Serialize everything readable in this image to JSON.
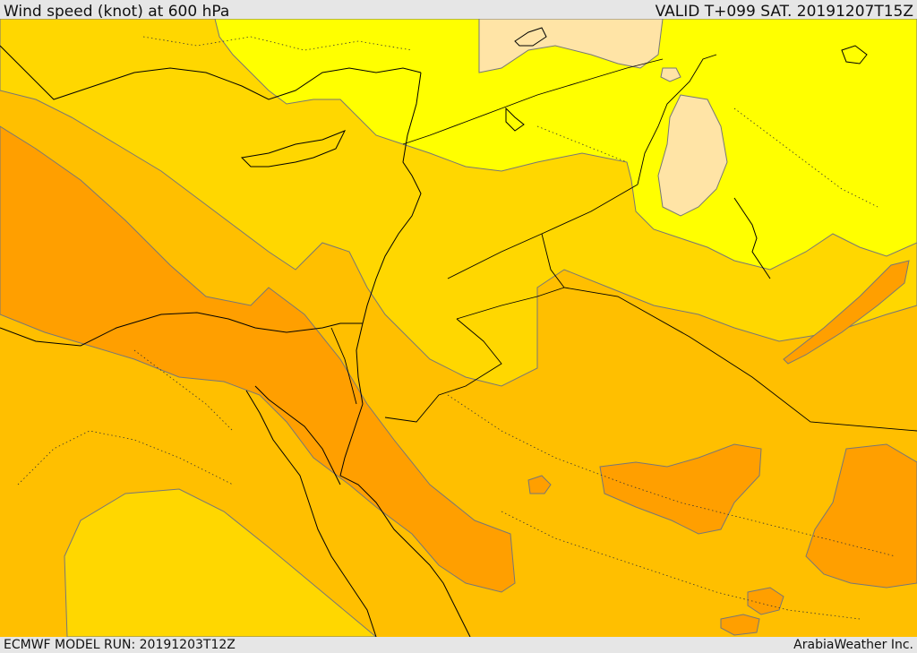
{
  "header": {
    "title": "Wind speed (knot) at 600 hPa",
    "valid": "VALID T+099 SAT. 20191207T15Z"
  },
  "footer": {
    "model_run": "ECMWF MODEL RUN: 20191203T12Z",
    "credit": "ArabiaWeather Inc."
  },
  "map": {
    "colors": {
      "band_lightest": "#ffe4a6",
      "band_yellow": "#ffff00",
      "band_gold": "#ffd700",
      "band_amber": "#ffbf00",
      "band_orange": "#ff9f00",
      "boundary": "#000000",
      "contour": "#777777"
    }
  }
}
